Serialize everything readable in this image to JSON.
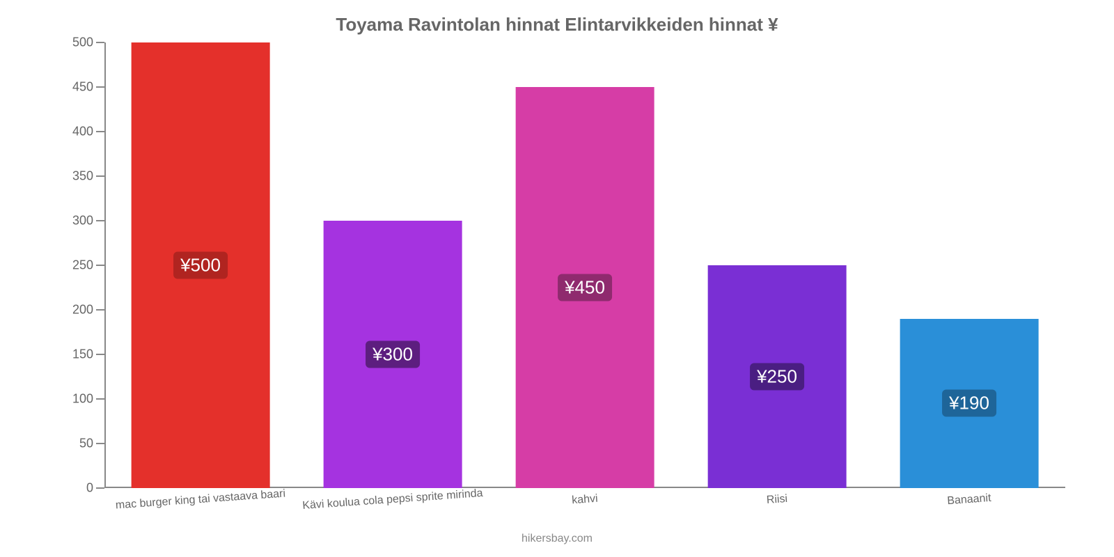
{
  "chart": {
    "type": "bar",
    "title": "Toyama Ravintolan hinnat Elintarvikkeiden hinnat ¥",
    "title_color": "#666666",
    "title_fontsize": 26,
    "categories": [
      "mac burger king tai vastaava baari",
      "Kävi koulua cola pepsi sprite mirinda",
      "kahvi",
      "Riisi",
      "Banaanit"
    ],
    "values": [
      500,
      300,
      450,
      250,
      190
    ],
    "value_labels": [
      "¥500",
      "¥300",
      "¥450",
      "¥250",
      "¥190"
    ],
    "bar_colors": [
      "#e4302b",
      "#a533e0",
      "#d63da6",
      "#7a2fd4",
      "#2a8fd8"
    ],
    "badge_colors": [
      "#b02420",
      "#5d1e7f",
      "#8f2a6e",
      "#4a1e82",
      "#1e6599"
    ],
    "bar_width_pct": 72,
    "ylim": [
      0,
      500
    ],
    "ytick_step": 50,
    "axis_color": "#888888",
    "tick_label_color": "#666666",
    "tick_label_fontsize": 18,
    "cat_label_fontsize": 16,
    "cat_label_rotation_deg": -4,
    "value_label_fontsize": 26,
    "background_color": "#ffffff"
  },
  "footer": {
    "text": "hikersbay.com",
    "color": "#888888",
    "fontsize": 16
  }
}
